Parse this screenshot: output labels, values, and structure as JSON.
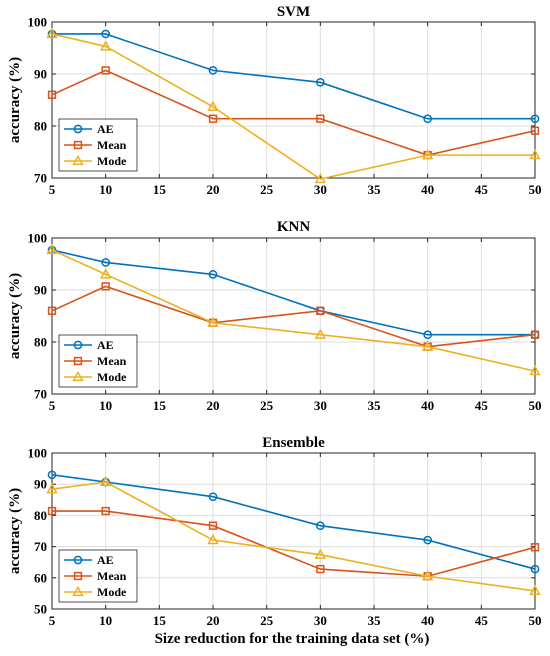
{
  "colors": {
    "AE": "#0072BD",
    "Mean": "#D95319",
    "Mode": "#EDB120"
  },
  "xlabel": "Size reduction for the training data set (%)",
  "chart_data": [
    {
      "type": "line",
      "title": "SVM",
      "ylabel": "accuracy (%)",
      "x": [
        5,
        10,
        20,
        30,
        40,
        50
      ],
      "xlim": [
        5,
        50
      ],
      "xticks": [
        5,
        10,
        15,
        20,
        25,
        30,
        35,
        40,
        45,
        50
      ],
      "ylim": [
        70,
        100
      ],
      "yticks": [
        70,
        80,
        90,
        100
      ],
      "grid": true,
      "legend": "bottom-left",
      "series": [
        {
          "name": "AE",
          "marker": "circle",
          "values": [
            97.7,
            97.7,
            90.7,
            88.4,
            81.4,
            81.4
          ]
        },
        {
          "name": "Mean",
          "marker": "square",
          "values": [
            86.0,
            90.7,
            81.4,
            81.4,
            74.4,
            79.1
          ]
        },
        {
          "name": "Mode",
          "marker": "triangle",
          "values": [
            97.7,
            95.3,
            83.7,
            69.8,
            74.4,
            74.4
          ]
        }
      ]
    },
    {
      "type": "line",
      "title": "KNN",
      "ylabel": "accuracy (%)",
      "x": [
        5,
        10,
        20,
        30,
        40,
        50
      ],
      "xlim": [
        5,
        50
      ],
      "xticks": [
        5,
        10,
        15,
        20,
        25,
        30,
        35,
        40,
        45,
        50
      ],
      "ylim": [
        70,
        100
      ],
      "yticks": [
        70,
        80,
        90,
        100
      ],
      "grid": true,
      "legend": "bottom-left",
      "series": [
        {
          "name": "AE",
          "marker": "circle",
          "values": [
            97.7,
            95.3,
            93.0,
            86.0,
            81.4,
            81.4
          ]
        },
        {
          "name": "Mean",
          "marker": "square",
          "values": [
            86.0,
            90.7,
            83.7,
            86.0,
            79.1,
            81.4
          ]
        },
        {
          "name": "Mode",
          "marker": "triangle",
          "values": [
            97.7,
            93.0,
            83.7,
            81.4,
            79.1,
            74.4
          ]
        }
      ]
    },
    {
      "type": "line",
      "title": "Ensemble",
      "ylabel": "accuracy (%)",
      "x": [
        5,
        10,
        20,
        30,
        40,
        50
      ],
      "xlim": [
        5,
        50
      ],
      "xticks": [
        5,
        10,
        15,
        20,
        25,
        30,
        35,
        40,
        45,
        50
      ],
      "ylim": [
        50,
        100
      ],
      "yticks": [
        50,
        60,
        70,
        80,
        90,
        100
      ],
      "grid": true,
      "legend": "bottom-left",
      "series": [
        {
          "name": "AE",
          "marker": "circle",
          "values": [
            93.0,
            90.7,
            86.0,
            76.7,
            72.1,
            62.8
          ]
        },
        {
          "name": "Mean",
          "marker": "square",
          "values": [
            81.4,
            81.4,
            76.7,
            62.8,
            60.5,
            69.8
          ]
        },
        {
          "name": "Mode",
          "marker": "triangle",
          "values": [
            88.4,
            90.7,
            72.1,
            67.4,
            60.5,
            55.8
          ]
        }
      ]
    }
  ]
}
